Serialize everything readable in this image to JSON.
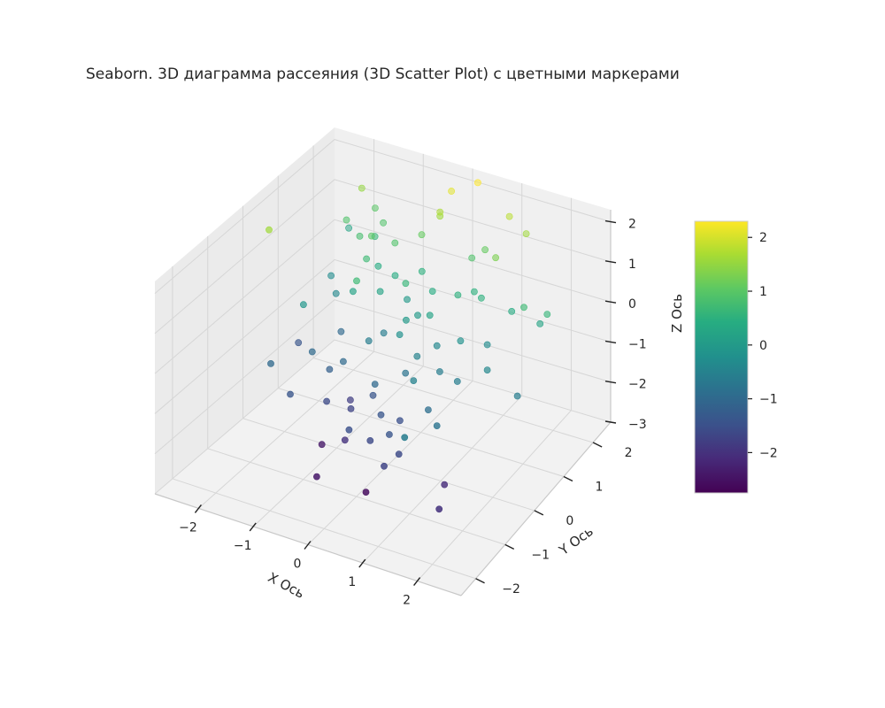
{
  "chart_data": {
    "type": "scatter",
    "projection": "3d",
    "title": "Seaborn. 3D диаграмма рассеяния (3D Scatter Plot) с цветными маркерами",
    "xlabel": "X Ось",
    "ylabel": "Y Ось",
    "zlabel": "Z Ось",
    "xlim": [
      -2.8,
      2.8
    ],
    "ylim": [
      -2.5,
      2.6
    ],
    "zlim": [
      -3.0,
      2.3
    ],
    "xticks": [
      {
        "value": -2,
        "label": "−2"
      },
      {
        "value": -1,
        "label": "−1"
      },
      {
        "value": 0,
        "label": "0"
      },
      {
        "value": 1,
        "label": "1"
      },
      {
        "value": 2,
        "label": "2"
      }
    ],
    "yticks": [
      {
        "value": -2,
        "label": "−2"
      },
      {
        "value": -1,
        "label": "−1"
      },
      {
        "value": 0,
        "label": "0"
      },
      {
        "value": 1,
        "label": "1"
      },
      {
        "value": 2,
        "label": "2"
      }
    ],
    "zticks": [
      {
        "value": -3,
        "label": "−3"
      },
      {
        "value": -2,
        "label": "−2"
      },
      {
        "value": -1,
        "label": "−1"
      },
      {
        "value": 0,
        "label": "0"
      },
      {
        "value": 1,
        "label": "1"
      },
      {
        "value": 2,
        "label": "2"
      }
    ],
    "grid": true,
    "colormap": "viridis",
    "colorbar": {
      "min": -2.75,
      "max": 2.3,
      "ticks": [
        {
          "value": 2,
          "label": "2"
        },
        {
          "value": 1,
          "label": "1"
        },
        {
          "value": 0,
          "label": "0"
        },
        {
          "value": -1,
          "label": "−1"
        },
        {
          "value": -2,
          "label": "−2"
        }
      ]
    },
    "color_variable": "z",
    "points": [
      {
        "x": -1.9,
        "y": 2.1,
        "z": 1.5
      },
      {
        "x": -2.0,
        "y": 1.8,
        "z": 0.9
      },
      {
        "x": -2.3,
        "y": 2.3,
        "z": 0.2
      },
      {
        "x": -2.1,
        "y": 1.5,
        "z": -0.3
      },
      {
        "x": -1.7,
        "y": 2.2,
        "z": 1.0
      },
      {
        "x": -1.5,
        "y": 1.9,
        "z": 0.6
      },
      {
        "x": -1.4,
        "y": 2.0,
        "z": 0.9
      },
      {
        "x": -1.6,
        "y": 1.6,
        "z": 0.8
      },
      {
        "x": -1.3,
        "y": 1.5,
        "z": 1.0
      },
      {
        "x": -1.2,
        "y": 1.2,
        "z": 0.7
      },
      {
        "x": -1.8,
        "y": 1.2,
        "z": -0.4
      },
      {
        "x": -2.2,
        "y": 0.7,
        "z": -1.4
      },
      {
        "x": -1.5,
        "y": 0.9,
        "z": -1.0
      },
      {
        "x": -1.1,
        "y": 1.4,
        "z": 0.4
      },
      {
        "x": -0.9,
        "y": 1.6,
        "z": 0.9
      },
      {
        "x": -0.8,
        "y": 1.0,
        "z": 0.2
      },
      {
        "x": -0.7,
        "y": 1.3,
        "z": 0.4
      },
      {
        "x": -0.5,
        "y": 1.8,
        "z": 1.1
      },
      {
        "x": -0.6,
        "y": 0.8,
        "z": -0.6
      },
      {
        "x": -1.0,
        "y": 0.6,
        "z": 0.7
      },
      {
        "x": -1.2,
        "y": 0.8,
        "z": 0.2
      },
      {
        "x": -1.6,
        "y": 0.2,
        "z": -1.0
      },
      {
        "x": -1.0,
        "y": 0.2,
        "z": -1.0
      },
      {
        "x": -0.7,
        "y": 0.5,
        "z": -0.6
      },
      {
        "x": -0.4,
        "y": 1.2,
        "z": 0.0
      },
      {
        "x": -0.2,
        "y": 1.9,
        "z": 1.6
      },
      {
        "x": -0.3,
        "y": 1.0,
        "z": 0.6
      },
      {
        "x": -0.3,
        "y": 1.5,
        "z": 0.5
      },
      {
        "x": -0.1,
        "y": 0.7,
        "z": 0.0
      },
      {
        "x": 0.1,
        "y": 1.2,
        "z": 0.4
      },
      {
        "x": 0.3,
        "y": 2.3,
        "z": 2.3
      },
      {
        "x": -0.1,
        "y": 2.1,
        "z": 2.1
      },
      {
        "x": -0.2,
        "y": 1.9,
        "z": 1.7
      },
      {
        "x": 0.5,
        "y": 1.8,
        "z": 0.9
      },
      {
        "x": 0.7,
        "y": 1.9,
        "z": 1.1
      },
      {
        "x": 1.0,
        "y": 2.2,
        "z": 1.8
      },
      {
        "x": 1.1,
        "y": 1.6,
        "z": 1.3
      },
      {
        "x": 1.4,
        "y": 2.1,
        "z": 1.6
      },
      {
        "x": 0.8,
        "y": 1.4,
        "z": 0.5
      },
      {
        "x": 0.6,
        "y": 1.2,
        "z": 0.5
      },
      {
        "x": 1.0,
        "y": 1.3,
        "z": 0.5
      },
      {
        "x": 0.3,
        "y": 0.8,
        "z": 0.2
      },
      {
        "x": 0.0,
        "y": 0.9,
        "z": 0.0
      },
      {
        "x": -0.1,
        "y": 0.5,
        "z": -0.2
      },
      {
        "x": 0.3,
        "y": 0.4,
        "z": -0.5
      },
      {
        "x": 0.5,
        "y": 0.7,
        "z": -0.4
      },
      {
        "x": 0.2,
        "y": 0.2,
        "z": -0.8
      },
      {
        "x": 0.9,
        "y": 0.8,
        "z": -0.2
      },
      {
        "x": 1.3,
        "y": 1.0,
        "z": -0.3
      },
      {
        "x": 1.6,
        "y": 1.3,
        "z": 0.4
      },
      {
        "x": 1.9,
        "y": 1.2,
        "z": 0.7
      },
      {
        "x": 2.1,
        "y": 1.4,
        "z": 0.2
      },
      {
        "x": 2.3,
        "y": 1.3,
        "z": 0.6
      },
      {
        "x": 1.6,
        "y": 0.5,
        "z": -0.4
      },
      {
        "x": 1.2,
        "y": 0.2,
        "z": -0.6
      },
      {
        "x": 0.8,
        "y": 0.3,
        "z": -0.6
      },
      {
        "x": 0.6,
        "y": -0.2,
        "z": -0.5
      },
      {
        "x": 1.0,
        "y": -0.4,
        "z": -0.9
      },
      {
        "x": 0.4,
        "y": -0.3,
        "z": -1.5
      },
      {
        "x": 0.1,
        "y": -0.4,
        "z": -1.4
      },
      {
        "x": -0.2,
        "y": -0.1,
        "z": -1.0
      },
      {
        "x": -0.3,
        "y": 0.0,
        "z": -1.4
      },
      {
        "x": -0.6,
        "y": -0.2,
        "z": -1.7
      },
      {
        "x": -0.8,
        "y": 0.1,
        "z": -1.8
      },
      {
        "x": -1.0,
        "y": -0.3,
        "z": -1.6
      },
      {
        "x": -1.2,
        "y": 0.1,
        "z": -1.2
      },
      {
        "x": -0.9,
        "y": -0.6,
        "z": -2.4
      },
      {
        "x": -0.4,
        "y": -0.7,
        "z": -2.0
      },
      {
        "x": -0.2,
        "y": -0.9,
        "z": -1.5
      },
      {
        "x": 0.2,
        "y": -0.9,
        "z": -1.6
      },
      {
        "x": 0.5,
        "y": -0.8,
        "z": -1.4
      },
      {
        "x": 0.3,
        "y": -1.2,
        "z": -2.6
      },
      {
        "x": 0.8,
        "y": -1.0,
        "z": -1.6
      },
      {
        "x": 0.7,
        "y": -1.3,
        "z": -1.7
      },
      {
        "x": 1.6,
        "y": -0.9,
        "z": -2.1
      },
      {
        "x": 1.9,
        "y": -1.6,
        "z": -2.0
      },
      {
        "x": 1.2,
        "y": -1.5,
        "z": -0.6
      },
      {
        "x": 1.4,
        "y": -0.8,
        "z": -0.8
      },
      {
        "x": -0.5,
        "y": -1.4,
        "z": -2.4
      },
      {
        "x": -1.5,
        "y": -0.6,
        "z": -1.4
      },
      {
        "x": -2.0,
        "y": -0.4,
        "z": -1.0
      },
      {
        "x": -2.5,
        "y": 0.3,
        "z": 1.6
      },
      {
        "x": -1.9,
        "y": 0.4,
        "z": -0.1
      },
      {
        "x": 2.3,
        "y": 0.3,
        "z": -0.6
      }
    ]
  }
}
